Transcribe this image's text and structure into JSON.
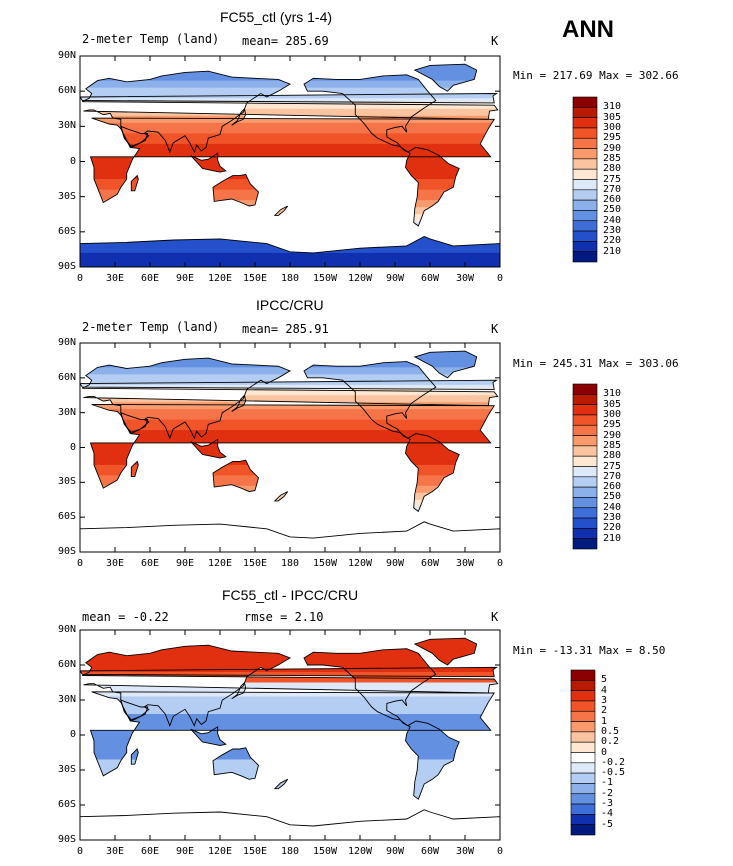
{
  "season": "ANN",
  "panels": [
    {
      "title": "FC55_ctl (yrs 1-4)",
      "left_label": "2-meter Temp (land)",
      "center_label": "mean= 285.69",
      "right_label": "K",
      "minmax": "Min = 217.69 Max = 302.66",
      "colorbar_levels": [
        "310",
        "305",
        "300",
        "295",
        "290",
        "285",
        "280",
        "275",
        "270",
        "260",
        "250",
        "240",
        "230",
        "220",
        "210"
      ],
      "colorbar_colors": [
        "#8b0000",
        "#b81a00",
        "#e03010",
        "#f05428",
        "#f57448",
        "#f89a6c",
        "#fbc4a0",
        "#fde6d2",
        "#dde8f8",
        "#b4cdf2",
        "#8bb0ea",
        "#6490e2",
        "#3f6ed8",
        "#2450cc",
        "#1030b0",
        "#001a80"
      ],
      "antarctica": true
    },
    {
      "title": "IPCC/CRU",
      "left_label": "2-meter Temp (land)",
      "center_label": "mean= 285.91",
      "right_label": "K",
      "minmax": "Min = 245.31 Max = 303.06",
      "colorbar_levels": [
        "310",
        "305",
        "300",
        "295",
        "290",
        "285",
        "280",
        "275",
        "270",
        "260",
        "250",
        "240",
        "230",
        "220",
        "210"
      ],
      "colorbar_colors": [
        "#8b0000",
        "#b81a00",
        "#e03010",
        "#f05428",
        "#f57448",
        "#f89a6c",
        "#fbc4a0",
        "#fde6d2",
        "#dde8f8",
        "#b4cdf2",
        "#8bb0ea",
        "#6490e2",
        "#3f6ed8",
        "#2450cc",
        "#1030b0",
        "#001a80"
      ],
      "antarctica": false
    },
    {
      "title": "FC55_ctl - IPCC/CRU",
      "left_label": "mean =  -0.22",
      "center_label": "rmse =   2.10",
      "right_label": "K",
      "minmax": "Min = -13.31 Max =   8.50",
      "colorbar_levels": [
        "5",
        "4",
        "3",
        "2",
        "1",
        "0.5",
        "0.2",
        "0",
        "-0.2",
        "-0.5",
        "-1",
        "-2",
        "-3",
        "-4",
        "-5"
      ],
      "colorbar_colors": [
        "#8b0000",
        "#b81a00",
        "#e03010",
        "#f05428",
        "#f57448",
        "#f89a6c",
        "#fbc4a0",
        "#fde6d2",
        "#ffffff",
        "#dde8f8",
        "#b4cdf2",
        "#8bb0ea",
        "#6490e2",
        "#3f6ed8",
        "#1030b0",
        "#001a80"
      ],
      "antarctica": false
    }
  ],
  "chart_data": [
    {
      "type": "heatmap",
      "title": "FC55_ctl (yrs 1-4)",
      "variable": "2-meter Temp (land)",
      "units": "K",
      "mean": 285.69,
      "min": 217.69,
      "max": 302.66,
      "xlabels": [
        "0",
        "30E",
        "60E",
        "90E",
        "120E",
        "150E",
        "180",
        "150W",
        "120W",
        "90W",
        "60W",
        "30W",
        "0"
      ],
      "ylabels": [
        "90N",
        "60N",
        "30N",
        "0",
        "30S",
        "60S",
        "90S"
      ],
      "contour_levels": [
        310,
        305,
        300,
        295,
        290,
        285,
        280,
        275,
        270,
        260,
        250,
        240,
        230,
        220,
        210
      ]
    },
    {
      "type": "heatmap",
      "title": "IPCC/CRU",
      "variable": "2-meter Temp (land)",
      "units": "K",
      "mean": 285.91,
      "min": 245.31,
      "max": 303.06,
      "xlabels": [
        "0",
        "30E",
        "60E",
        "90E",
        "120E",
        "150E",
        "180",
        "150W",
        "120W",
        "90W",
        "60W",
        "30W",
        "0"
      ],
      "ylabels": [
        "90N",
        "60N",
        "30N",
        "0",
        "30S",
        "60S",
        "90S"
      ],
      "contour_levels": [
        310,
        305,
        300,
        295,
        290,
        285,
        280,
        275,
        270,
        260,
        250,
        240,
        230,
        220,
        210
      ]
    },
    {
      "type": "heatmap",
      "title": "FC55_ctl - IPCC/CRU",
      "units": "K",
      "mean": -0.22,
      "rmse": 2.1,
      "min": -13.31,
      "max": 8.5,
      "xlabels": [
        "0",
        "30E",
        "60E",
        "90E",
        "120E",
        "150E",
        "180",
        "150W",
        "120W",
        "90W",
        "60W",
        "30W",
        "0"
      ],
      "ylabels": [
        "90N",
        "60N",
        "30N",
        "0",
        "30S",
        "60S",
        "90S"
      ],
      "contour_levels": [
        5,
        4,
        3,
        2,
        1,
        0.5,
        0.2,
        0,
        -0.2,
        -0.5,
        -1,
        -2,
        -3,
        -4,
        -5
      ]
    }
  ]
}
